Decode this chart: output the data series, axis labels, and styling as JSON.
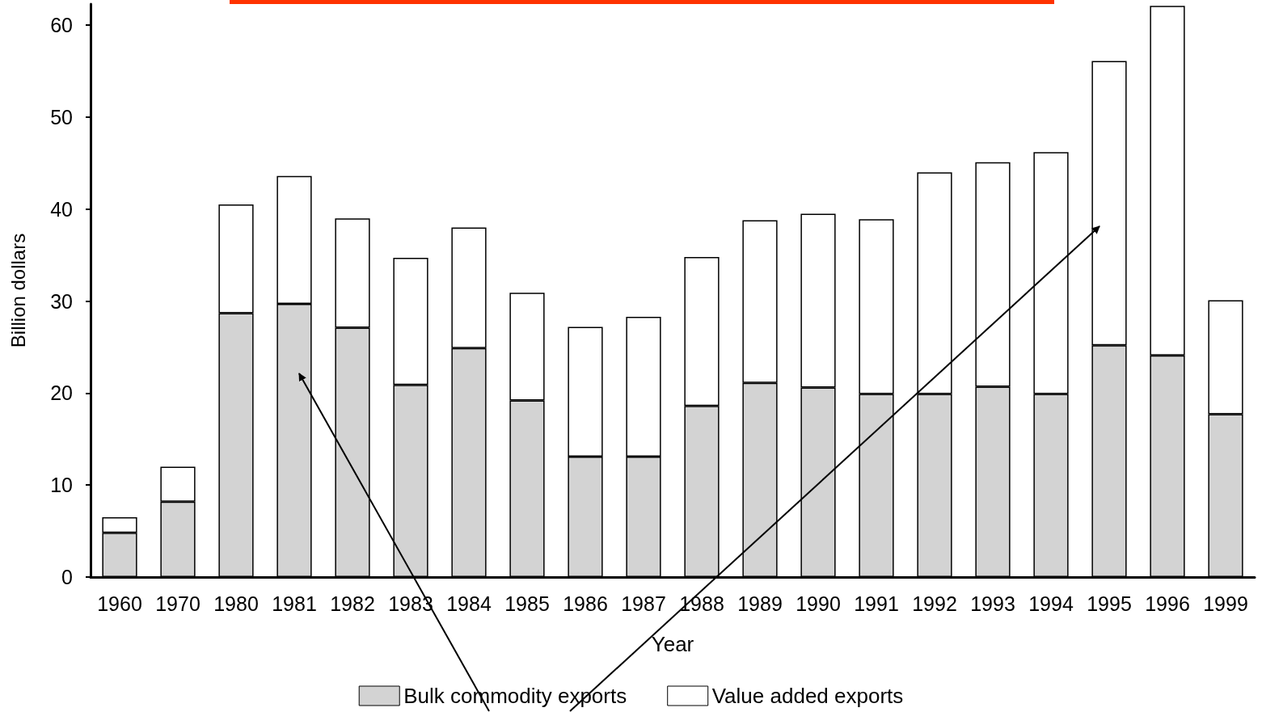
{
  "chart_data": {
    "type": "bar",
    "stacked": true,
    "xlabel": "Year",
    "ylabel": "Billion dollars",
    "categories": [
      "1960",
      "1970",
      "1980",
      "1981",
      "1982",
      "1983",
      "1984",
      "1985",
      "1986",
      "1987",
      "1988",
      "1989",
      "1990",
      "1991",
      "1992",
      "1993",
      "1994",
      "1995",
      "1996",
      "1999"
    ],
    "series": [
      {
        "name": "Bulk commodity exports",
        "color": "#d3d3d3",
        "values": [
          4.8,
          8.2,
          28.7,
          29.7,
          27.1,
          20.9,
          24.9,
          19.2,
          13.1,
          13.1,
          18.6,
          21.1,
          20.6,
          19.9,
          19.9,
          20.7,
          19.9,
          25.2,
          24.1,
          17.7
        ]
      },
      {
        "name": "Value added exports",
        "color": "#ffffff",
        "values": [
          1.7,
          3.8,
          11.8,
          13.9,
          11.9,
          13.8,
          13.1,
          11.7,
          14.1,
          15.2,
          16.2,
          17.7,
          18.9,
          19.0,
          24.1,
          24.4,
          26.3,
          30.9,
          38.0,
          12.4
        ]
      }
    ],
    "ylim": [
      0,
      62.3
    ],
    "yticks": [
      0,
      10,
      20,
      30,
      40,
      50,
      60
    ],
    "grid": false,
    "legend": "bottom"
  }
}
